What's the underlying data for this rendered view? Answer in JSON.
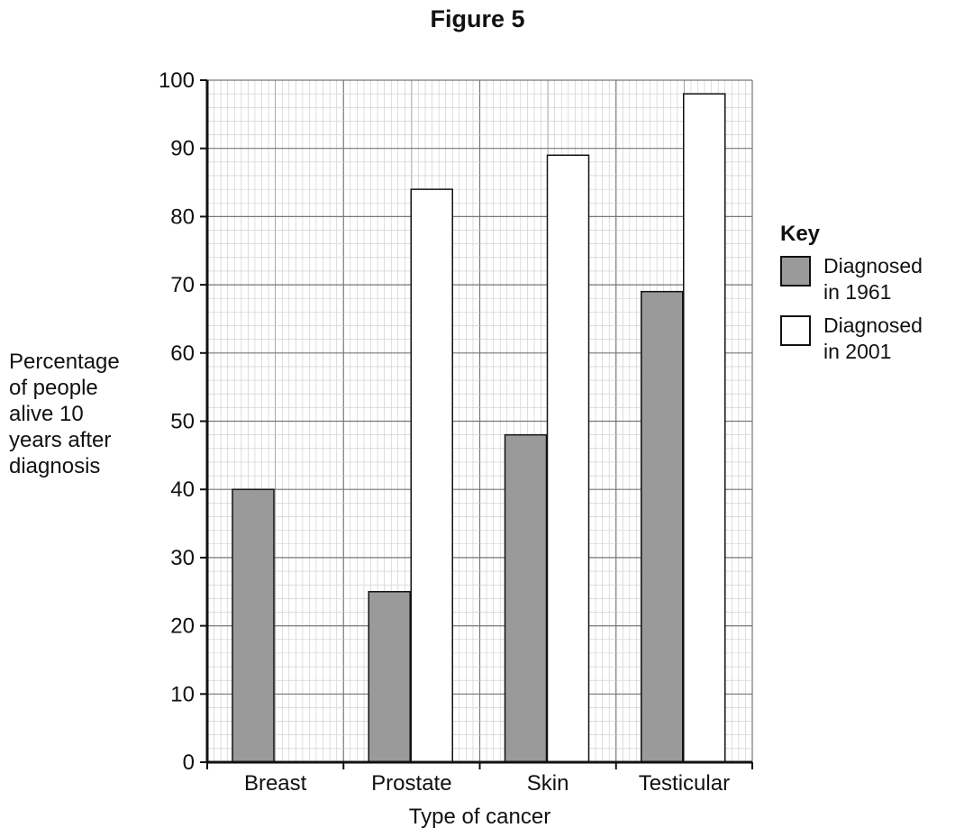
{
  "figure_title": "Figure 5",
  "chart_data": {
    "type": "bar",
    "title": "",
    "xlabel": "Type of cancer",
    "ylabel_lines": [
      "Percentage",
      "of people",
      "alive 10",
      "years after",
      "diagnosis"
    ],
    "categories": [
      "Breast",
      "Prostate",
      "Skin",
      "Testicular"
    ],
    "series": [
      {
        "name": "Diagnosed in 1961",
        "name_lines": [
          "Diagnosed",
          "in 1961"
        ],
        "values": [
          40,
          25,
          48,
          69
        ],
        "color": "#9a9a9a"
      },
      {
        "name": "Diagnosed in 2001",
        "name_lines": [
          "Diagnosed",
          "in 2001"
        ],
        "values": [
          null,
          84,
          89,
          98
        ],
        "color": "#ffffff"
      }
    ],
    "ylim": [
      0,
      100
    ],
    "yticks": [
      0,
      10,
      20,
      30,
      40,
      50,
      60,
      70,
      80,
      90,
      100
    ],
    "grid": true,
    "legend_title": "Key",
    "legend_position": "right"
  }
}
